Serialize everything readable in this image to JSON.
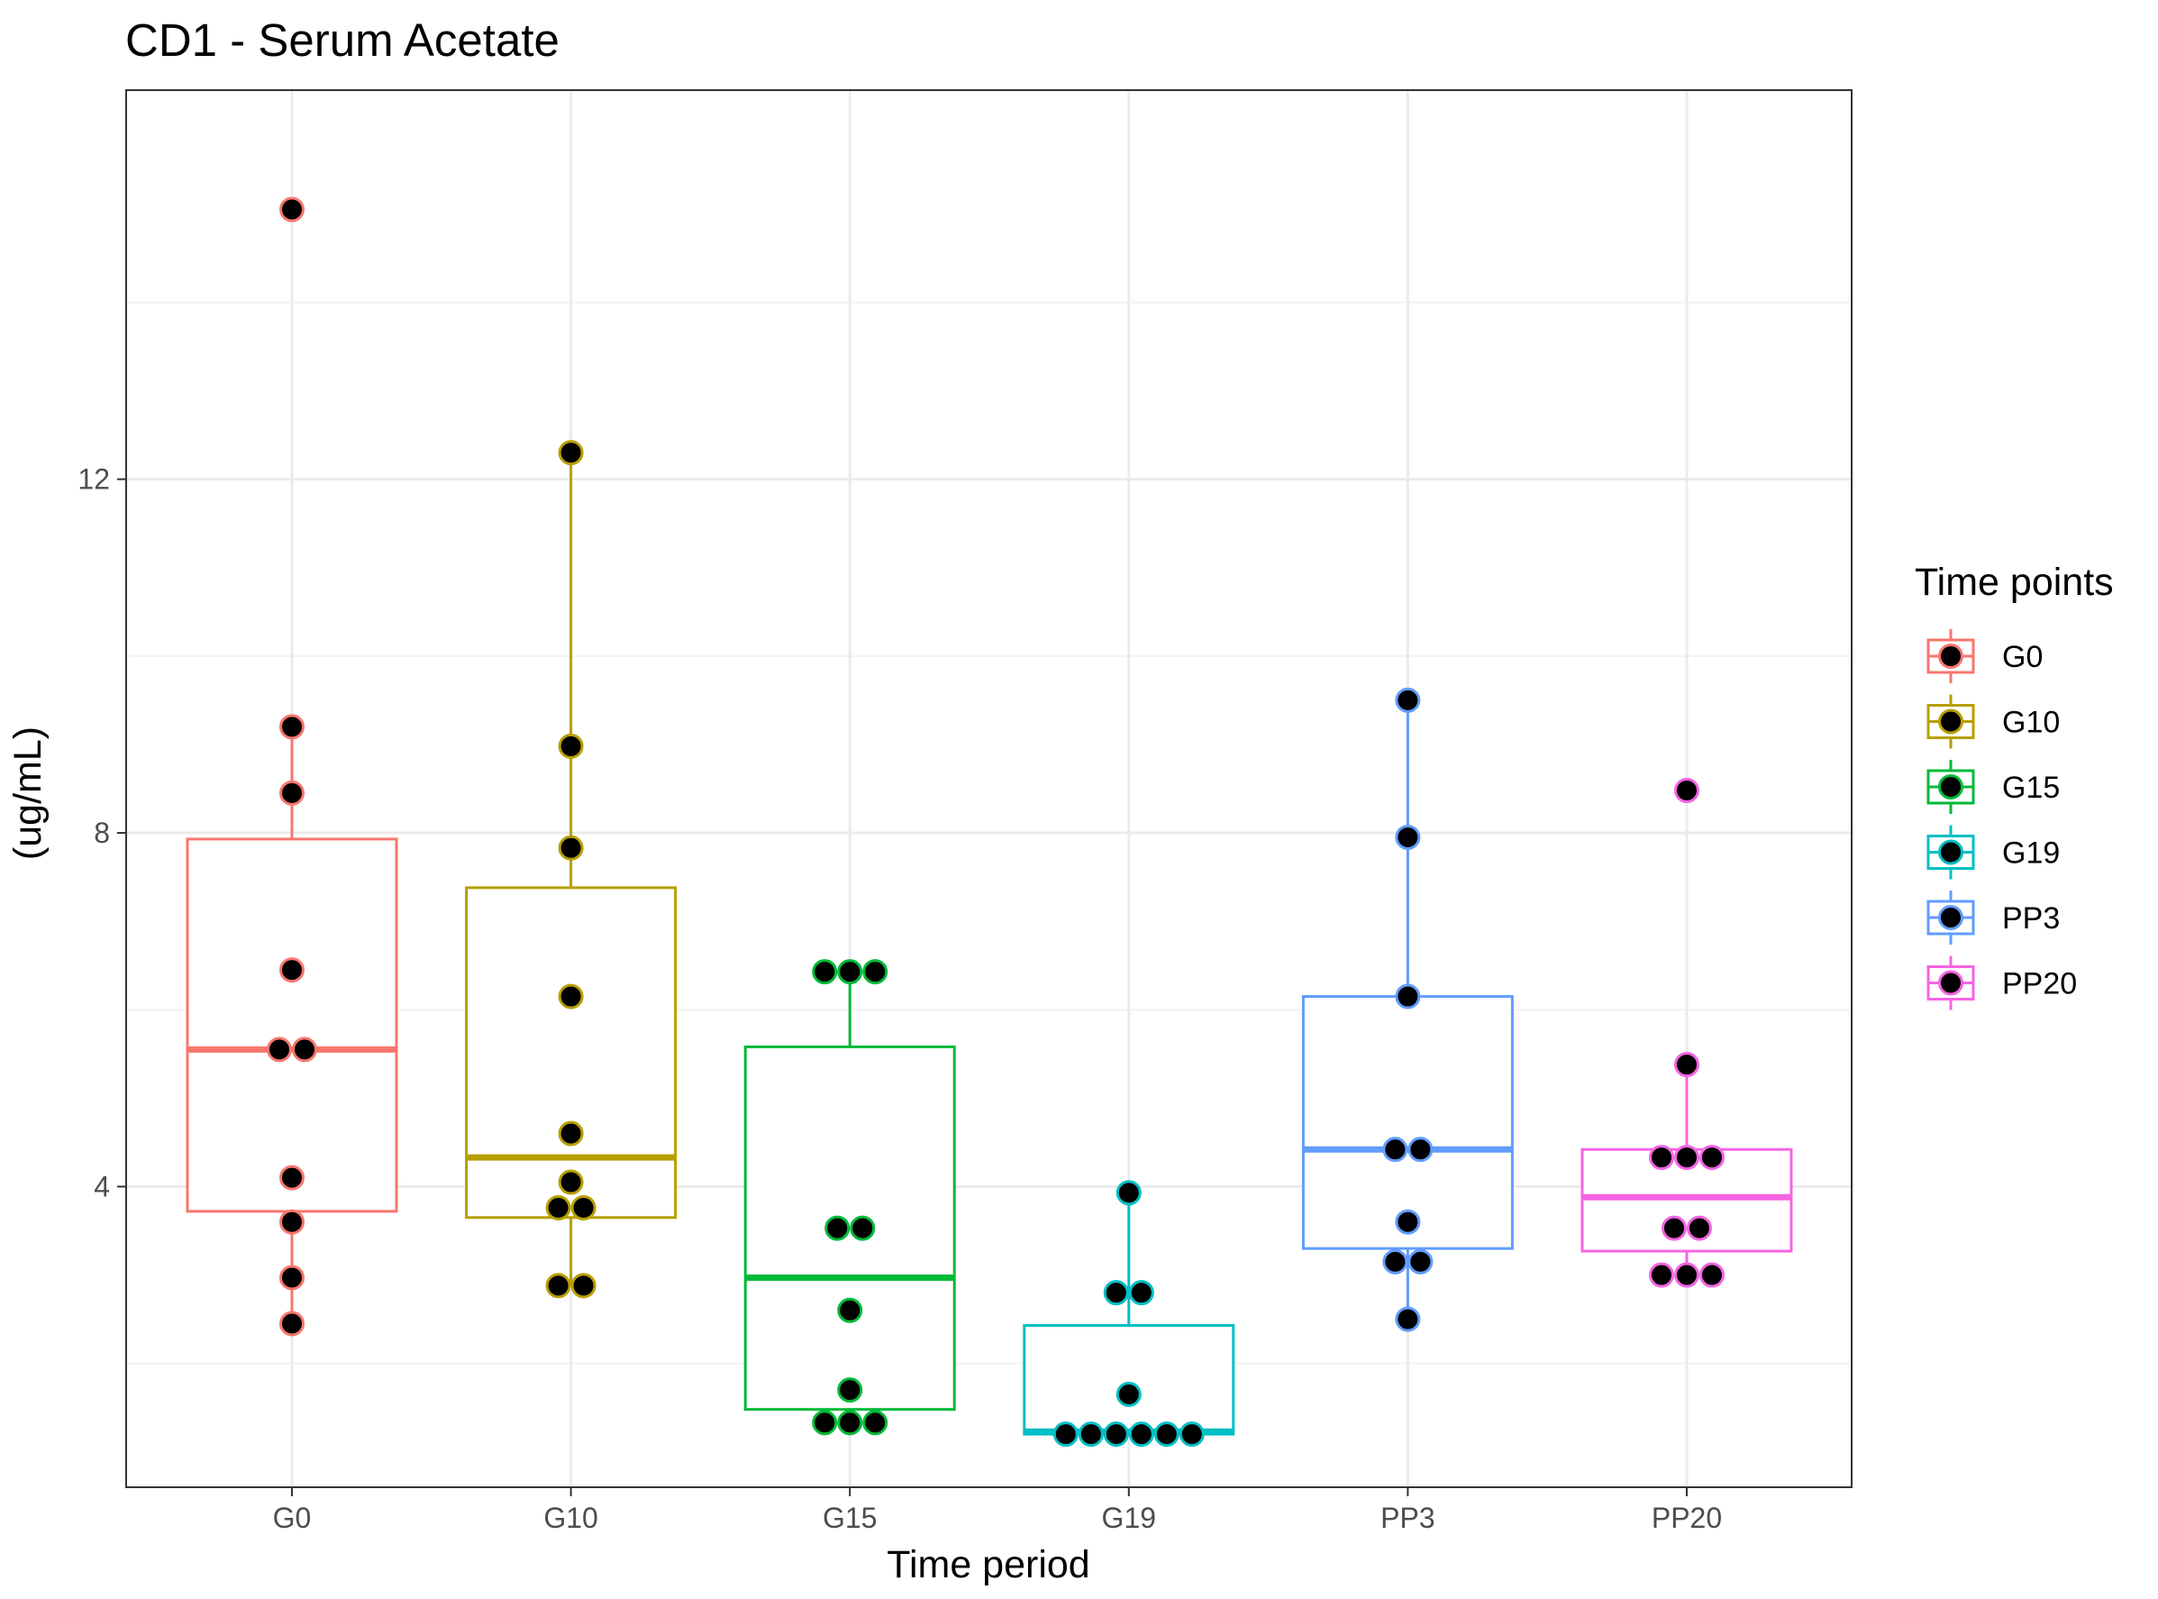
{
  "chart_data": {
    "type": "box",
    "title": "CD1 - Serum Acetate",
    "xlabel": "Time period",
    "ylabel": "(ug/mL)",
    "categories": [
      "G0",
      "G10",
      "G15",
      "G19",
      "PP3",
      "PP20"
    ],
    "ylim": [
      0.6,
      16.4
    ],
    "y_ticks": [
      4,
      8,
      12
    ],
    "y_tick_labels": [
      "4",
      "8",
      "12"
    ],
    "grid": true,
    "legend": {
      "title": "Time points",
      "position": "right"
    },
    "series": [
      {
        "name": "G0",
        "color": "#F8766D",
        "box": {
          "q1": 3.72,
          "median": 5.55,
          "q3": 7.93,
          "whisker_low": 2.45,
          "whisker_high": 9.2
        },
        "points": [
          15.05,
          9.2,
          8.45,
          6.45,
          5.55,
          5.55,
          4.1,
          3.6,
          2.97,
          2.45
        ]
      },
      {
        "name": "G10",
        "color": "#B79F00",
        "box": {
          "q1": 3.65,
          "median": 4.33,
          "q3": 7.38,
          "whisker_low": 2.88,
          "whisker_high": 12.3
        },
        "points": [
          12.3,
          8.98,
          7.83,
          6.15,
          4.6,
          4.05,
          3.76,
          3.76,
          2.88,
          2.88
        ]
      },
      {
        "name": "G15",
        "color": "#00BA38",
        "box": {
          "q1": 1.48,
          "median": 2.97,
          "q3": 5.58,
          "whisker_low": 1.33,
          "whisker_high": 6.43
        },
        "points": [
          6.43,
          6.43,
          6.43,
          3.53,
          3.53,
          2.6,
          1.7,
          1.33,
          1.33,
          1.33
        ]
      },
      {
        "name": "G19",
        "color": "#00BFC4",
        "box": {
          "q1": 1.2,
          "median": 1.23,
          "q3": 2.43,
          "whisker_low": 1.2,
          "whisker_high": 3.93
        },
        "points": [
          3.93,
          2.8,
          2.8,
          1.65,
          1.2,
          1.2,
          1.2,
          1.2,
          1.2,
          1.2
        ]
      },
      {
        "name": "PP3",
        "color": "#619CFF",
        "box": {
          "q1": 3.3,
          "median": 4.42,
          "q3": 6.15,
          "whisker_low": 2.5,
          "whisker_high": 9.5
        },
        "points": [
          9.5,
          7.95,
          6.15,
          4.42,
          4.42,
          3.6,
          3.15,
          3.15,
          2.5
        ]
      },
      {
        "name": "PP20",
        "color": "#F564E3",
        "box": {
          "q1": 3.27,
          "median": 3.88,
          "q3": 4.42,
          "whisker_low": 3.0,
          "whisker_high": 5.38
        },
        "points": [
          8.48,
          5.38,
          4.33,
          4.33,
          4.33,
          3.53,
          3.53,
          3.0,
          3.0,
          3.0
        ]
      }
    ]
  }
}
